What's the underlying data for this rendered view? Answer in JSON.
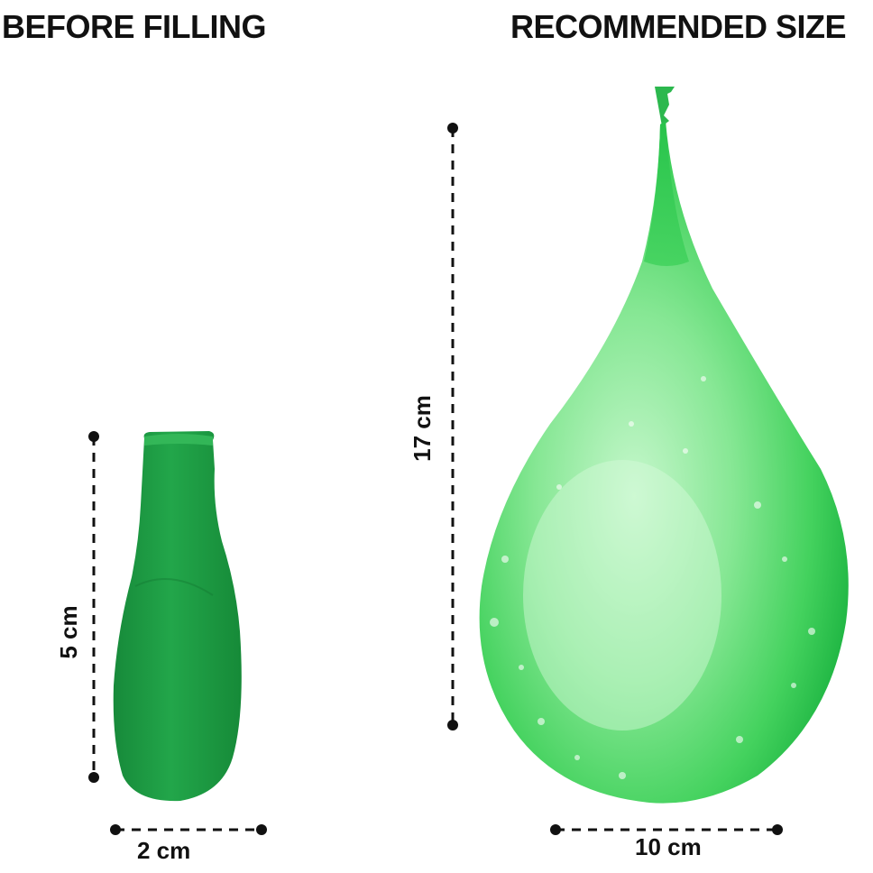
{
  "headings": {
    "before": "BEFORE FILLING",
    "recommended": "RECOMMENDED SIZE"
  },
  "dimensions": {
    "deflated_height": "5 cm",
    "deflated_width": "2 cm",
    "filled_height": "17 cm",
    "filled_width": "10 cm"
  },
  "colors": {
    "deflated_balloon": "#1fa046",
    "filled_balloon": "#3cd25a",
    "filled_highlight": "#b9f5c0",
    "dimension_line": "#111111",
    "background": "#ffffff"
  }
}
